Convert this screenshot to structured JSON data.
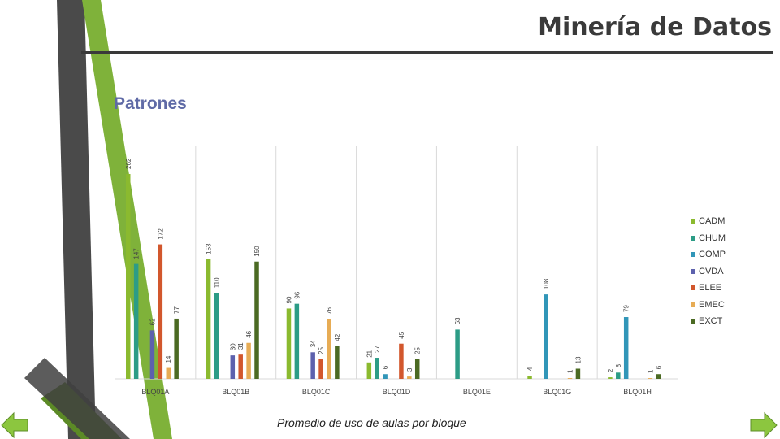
{
  "header": {
    "title": "Minería de Datos"
  },
  "section": {
    "subtitle": "Patrones"
  },
  "chart_data": {
    "type": "bar",
    "title": "",
    "xlabel": "Promedio de uso de aulas por bloque",
    "ylabel": "",
    "categories": [
      "BLQ01A",
      "BLQ01B",
      "BLQ01C",
      "BLQ01D",
      "BLQ01E",
      "BLQ01G",
      "BLQ01H"
    ],
    "series": [
      {
        "name": "CADM",
        "color": "#8bba2f",
        "values": [
          262,
          153,
          90,
          21,
          null,
          4,
          2
        ]
      },
      {
        "name": "CHUM",
        "color": "#2c9c86",
        "values": [
          147,
          110,
          96,
          27,
          63,
          null,
          8
        ]
      },
      {
        "name": "COMP",
        "color": "#3196b8",
        "values": [
          null,
          null,
          null,
          6,
          null,
          108,
          79
        ]
      },
      {
        "name": "CVDA",
        "color": "#5d61ad",
        "values": [
          62,
          30,
          34,
          null,
          null,
          null,
          null
        ]
      },
      {
        "name": "ELEE",
        "color": "#d2572d",
        "values": [
          172,
          31,
          25,
          45,
          null,
          null,
          null
        ]
      },
      {
        "name": "EMEC",
        "color": "#e7ac55",
        "values": [
          14,
          46,
          76,
          3,
          null,
          1,
          1
        ]
      },
      {
        "name": "EXCT",
        "color": "#4b6a23",
        "values": [
          77,
          150,
          42,
          25,
          null,
          13,
          6
        ]
      }
    ],
    "ylim": [
      0,
      262
    ],
    "grid": "vertical category separators",
    "legend_position": "right"
  },
  "navigation": {
    "prev_icon": "arrow-left-icon",
    "next_icon": "arrow-right-icon"
  },
  "colors": {
    "title": "#3a3a3a",
    "subtitle": "#5f6aa6",
    "deco_dark": "#404040",
    "deco_green": "#7fb23a",
    "nav_green": "#8cc63f"
  }
}
